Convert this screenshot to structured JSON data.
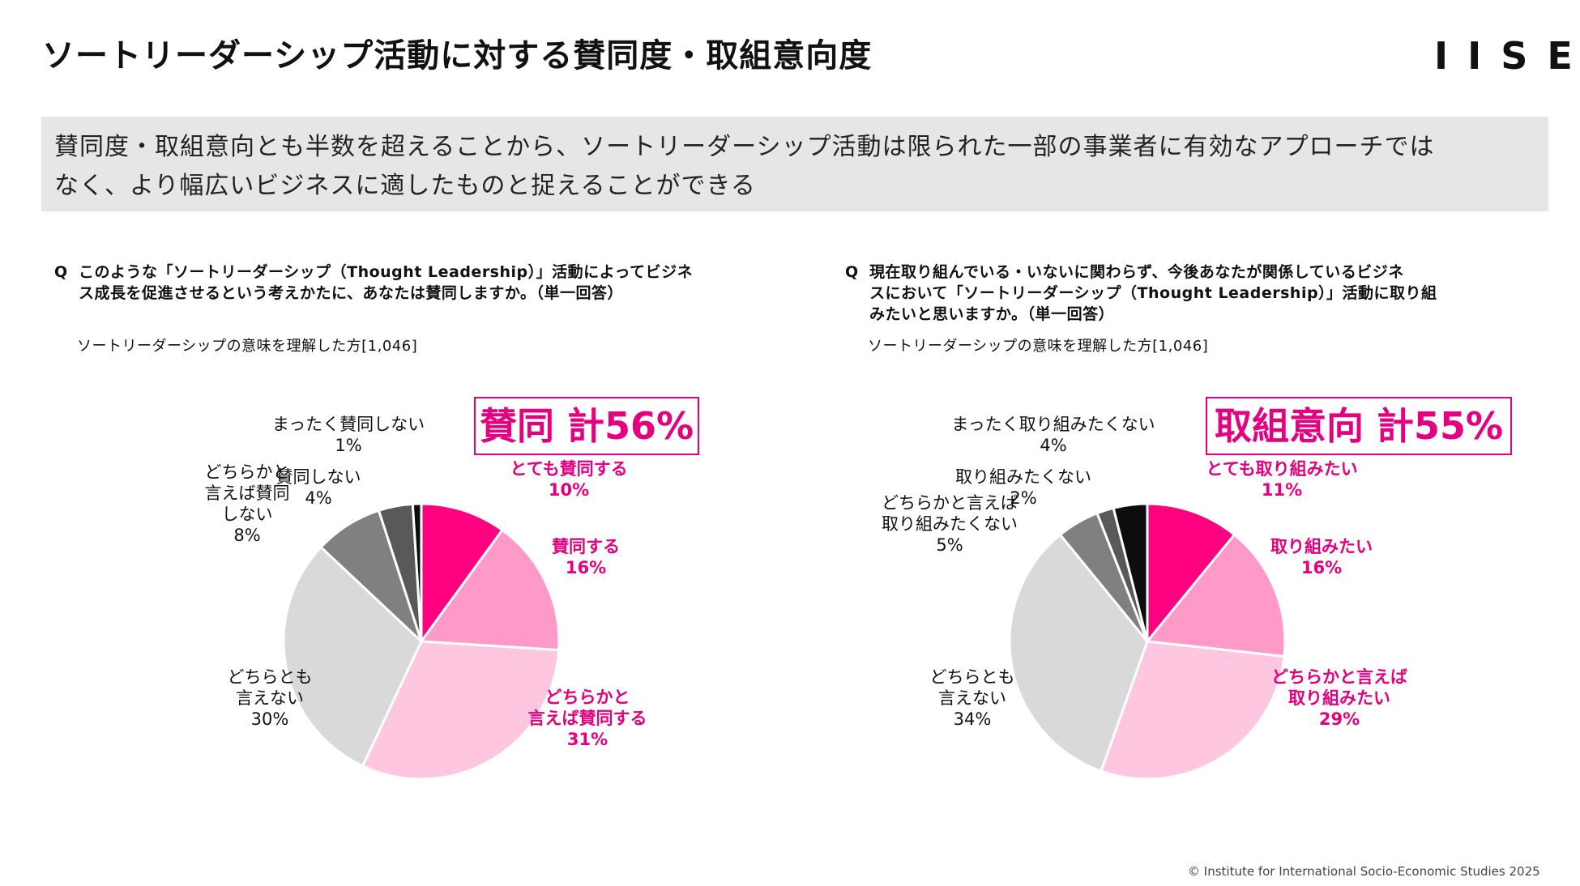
{
  "header": {
    "title": "ソートリーダーシップ活動に対する賛同度・取組意向度",
    "logo": "IISE"
  },
  "summary": {
    "line1": "賛同度・取組意向とも半数を超えることから、ソートリーダーシップ活動は限られた一部の事業者に有効なアプローチでは",
    "line2": "なく、より幅広いビジネスに適したものと捉えることができる"
  },
  "footer": {
    "copyright": "© Institute for International Socio-Economic Studies 2025"
  },
  "colors": {
    "accent": "#e4007f",
    "slice_strong_pos": "#ff0080",
    "slice_pos": "#ff99c8",
    "slice_weak_pos": "#ffc6e0",
    "slice_neutral": "#d9d9d9",
    "slice_weak_neg": "#808080",
    "slice_neg": "#595959",
    "slice_strong_neg": "#0d0d0d"
  },
  "chart_data": [
    {
      "type": "pie",
      "question_marker": "Q",
      "question_line1": "このような「ソートリーダーシップ（Thought Leadership）」活動によってビジネ",
      "question_line2": "ス成長を促進させるという考えかたに、あなたは賛同しますか。（単一回答）",
      "base_label": "ソートリーダーシップの意味を理解した方[1,046]",
      "total_label": "賛同 計56%",
      "start": "12 o'clock",
      "direction": "clockwise",
      "slices": [
        {
          "name": "とても賛同する",
          "label_lines": [
            "とても賛同する"
          ],
          "value": 10,
          "percent_text": "10%",
          "color": "#ff0080",
          "emphasis": true
        },
        {
          "name": "賛同する",
          "label_lines": [
            "賛同する"
          ],
          "value": 16,
          "percent_text": "16%",
          "color": "#ff99c8",
          "emphasis": true
        },
        {
          "name": "どちらかと言えば賛同する",
          "label_lines": [
            "どちらかと",
            "言えば賛同する"
          ],
          "value": 31,
          "percent_text": "31%",
          "color": "#ffc6e0",
          "emphasis": true
        },
        {
          "name": "どちらとも言えない",
          "label_lines": [
            "どちらとも",
            "言えない"
          ],
          "value": 30,
          "percent_text": "30%",
          "color": "#d9d9d9",
          "emphasis": false
        },
        {
          "name": "どちらかと言えば賛同しない",
          "label_lines": [
            "どちらかと",
            "言えば賛同",
            "しない"
          ],
          "value": 8,
          "percent_text": "8%",
          "color": "#808080",
          "emphasis": false
        },
        {
          "name": "賛同しない",
          "label_lines": [
            "賛同しない"
          ],
          "value": 4,
          "percent_text": "4%",
          "color": "#595959",
          "emphasis": false
        },
        {
          "name": "まったく賛同しない",
          "label_lines": [
            "まったく賛同しない"
          ],
          "value": 1,
          "percent_text": "1%",
          "color": "#0d0d0d",
          "emphasis": false
        }
      ]
    },
    {
      "type": "pie",
      "question_marker": "Q",
      "question_line1": "現在取り組んでいる・いないに関わらず、今後あなたが関係しているビジネ",
      "question_line2": "スにおいて「ソートリーダーシップ（Thought Leadership）」活動に取り組",
      "question_line3": "みたいと思いますか。（単一回答）",
      "base_label": "ソートリーダーシップの意味を理解した方[1,046]",
      "total_label": "取組意向 計55%",
      "start": "12 o'clock",
      "direction": "clockwise",
      "slices": [
        {
          "name": "とても取り組みたい",
          "label_lines": [
            "とても取り組みたい"
          ],
          "value": 11,
          "percent_text": "11%",
          "color": "#ff0080",
          "emphasis": true
        },
        {
          "name": "取り組みたい",
          "label_lines": [
            "取り組みたい"
          ],
          "value": 16,
          "percent_text": "16%",
          "color": "#ff99c8",
          "emphasis": true
        },
        {
          "name": "どちらかと言えば取り組みたい",
          "label_lines": [
            "どちらかと言えば",
            "取り組みたい"
          ],
          "value": 29,
          "percent_text": "29%",
          "color": "#ffc6e0",
          "emphasis": true
        },
        {
          "name": "どちらとも言えない",
          "label_lines": [
            "どちらとも",
            "言えない"
          ],
          "value": 34,
          "percent_text": "34%",
          "color": "#d9d9d9",
          "emphasis": false
        },
        {
          "name": "どちらかと言えば取り組みたくない",
          "label_lines": [
            "どちらかと言えば",
            "取り組みたくない"
          ],
          "value": 5,
          "percent_text": "5%",
          "color": "#808080",
          "emphasis": false
        },
        {
          "name": "取り組みたくない",
          "label_lines": [
            "取り組みたくない"
          ],
          "value": 2,
          "percent_text": "2%",
          "color": "#595959",
          "emphasis": false
        },
        {
          "name": "まったく取り組みたくない",
          "label_lines": [
            "まったく取り組みたくない"
          ],
          "value": 4,
          "percent_text": "4%",
          "color": "#0d0d0d",
          "emphasis": false
        }
      ]
    }
  ]
}
